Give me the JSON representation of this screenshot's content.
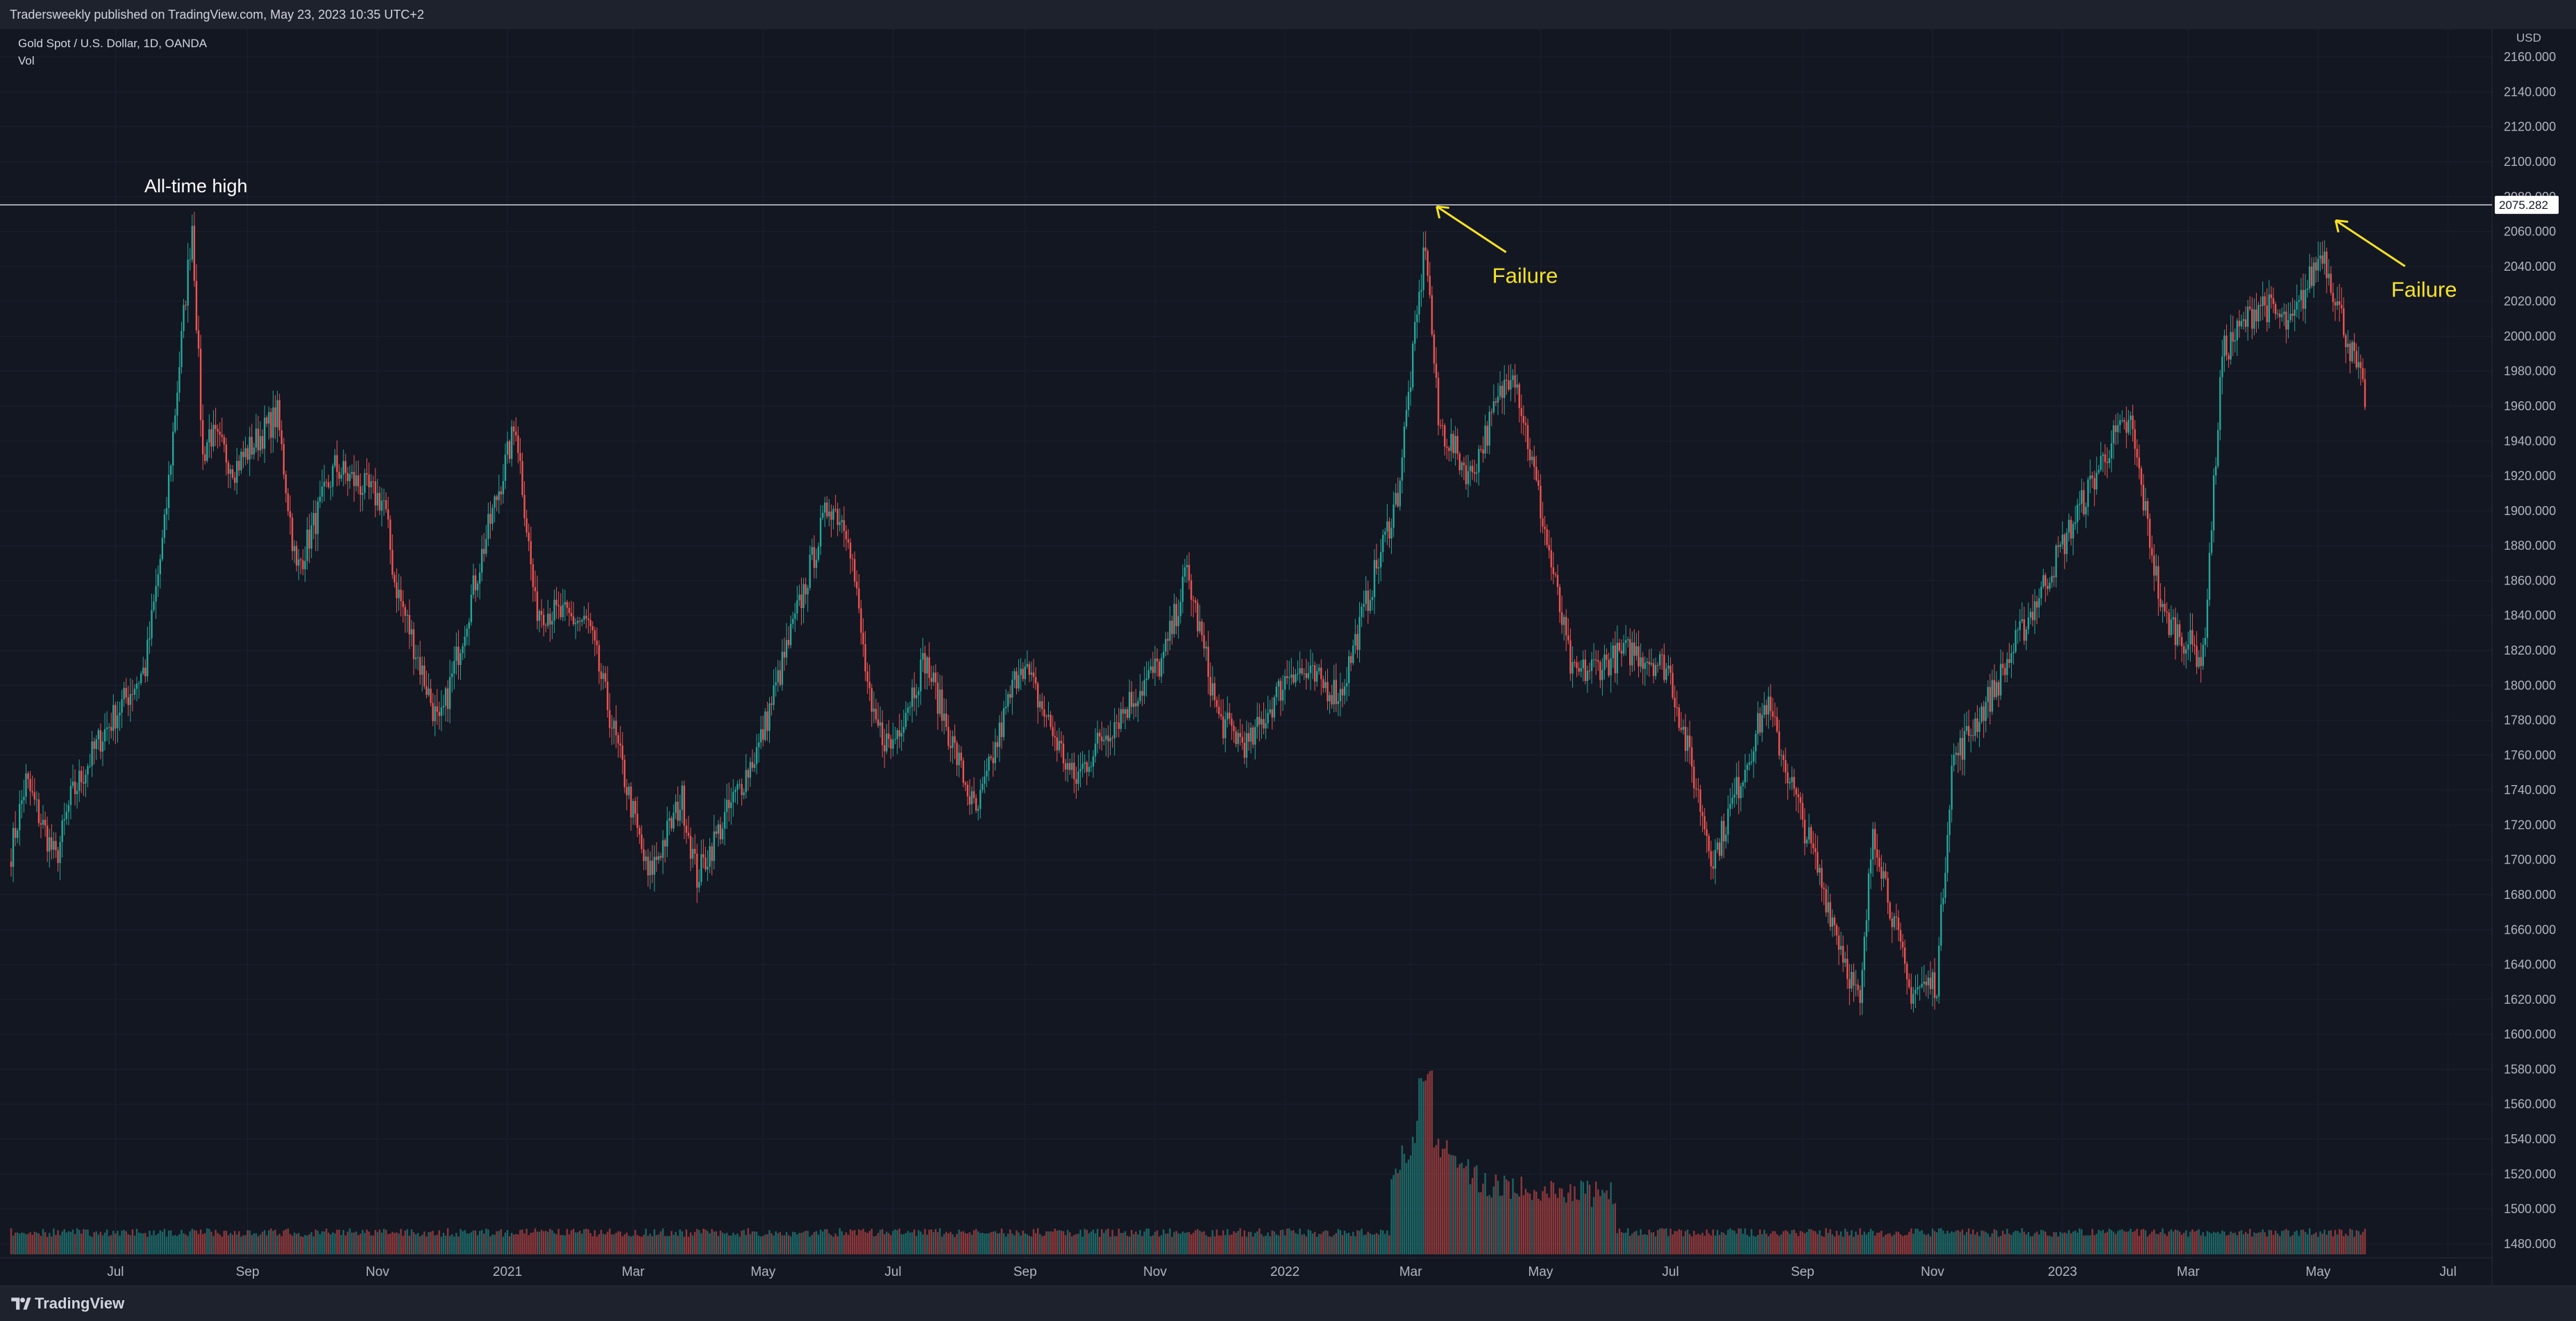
{
  "header": {
    "published": "Tradersweekly published on TradingView.com, May 23, 2023 10:35 UTC+2"
  },
  "legend": {
    "symbol": "Gold Spot / U.S. Dollar, 1D, OANDA",
    "volume": "Vol"
  },
  "footer": {
    "brand": "TradingView"
  },
  "colors": {
    "background": "#131722",
    "grid": "#1c2030",
    "up": "#26a69a",
    "down": "#ef5350",
    "annotation": "#f7e226",
    "ath_line": "#d1d4dc"
  },
  "chart_data": {
    "type": "candlestick",
    "title": "Gold Spot / U.S. Dollar, 1D, OANDA",
    "currency": "USD",
    "ylim": [
      1472,
      2172
    ],
    "y_ticks": [
      "2160.000",
      "2140.000",
      "2120.000",
      "2100.000",
      "2080.000",
      "2060.000",
      "2040.000",
      "2020.000",
      "2000.000",
      "1980.000",
      "1960.000",
      "1940.000",
      "1920.000",
      "1900.000",
      "1880.000",
      "1860.000",
      "1840.000",
      "1820.000",
      "1800.000",
      "1780.000",
      "1760.000",
      "1740.000",
      "1720.000",
      "1700.000",
      "1680.000",
      "1660.000",
      "1640.000",
      "1620.000",
      "1600.000",
      "1580.000",
      "1560.000",
      "1540.000",
      "1520.000",
      "1500.000",
      "1480.000"
    ],
    "x_ticks": [
      "Jul",
      "Sep",
      "Nov",
      "2021",
      "Mar",
      "May",
      "Jul",
      "Sep",
      "Nov",
      "2022",
      "Mar",
      "May",
      "Jul",
      "Sep",
      "Nov",
      "2023",
      "Mar",
      "May",
      "Jul"
    ],
    "x_range": [
      "2020-05-13",
      "2023-07-20"
    ],
    "x_tick_dates": [
      "2020-07-01",
      "2020-09-01",
      "2020-11-01",
      "2021-01-01",
      "2021-03-01",
      "2021-05-01",
      "2021-07-01",
      "2021-09-01",
      "2021-11-01",
      "2022-01-01",
      "2022-03-01",
      "2022-05-01",
      "2022-07-01",
      "2022-09-01",
      "2022-11-01",
      "2023-01-01",
      "2023-03-01",
      "2023-05-01",
      "2023-07-01"
    ],
    "price_path": [
      [
        "2020-05-13",
        1705
      ],
      [
        "2020-05-20",
        1745
      ],
      [
        "2020-06-03",
        1700
      ],
      [
        "2020-06-10",
        1735
      ],
      [
        "2020-06-24",
        1770
      ],
      [
        "2020-07-15",
        1810
      ],
      [
        "2020-07-24",
        1890
      ],
      [
        "2020-08-06",
        2065
      ],
      [
        "2020-08-11",
        1930
      ],
      [
        "2020-08-14",
        1945
      ],
      [
        "2020-08-26",
        1925
      ],
      [
        "2020-09-15",
        1955
      ],
      [
        "2020-09-24",
        1865
      ],
      [
        "2020-10-12",
        1925
      ],
      [
        "2020-11-04",
        1905
      ],
      [
        "2020-11-09",
        1860
      ],
      [
        "2020-11-30",
        1775
      ],
      [
        "2020-12-21",
        1880
      ],
      [
        "2021-01-05",
        1950
      ],
      [
        "2021-01-14",
        1845
      ],
      [
        "2021-02-08",
        1835
      ],
      [
        "2021-03-08",
        1690
      ],
      [
        "2021-03-24",
        1735
      ],
      [
        "2021-03-31",
        1690
      ],
      [
        "2021-04-29",
        1765
      ],
      [
        "2021-06-01",
        1905
      ],
      [
        "2021-06-10",
        1890
      ],
      [
        "2021-06-21",
        1780
      ],
      [
        "2021-06-30",
        1765
      ],
      [
        "2021-07-16",
        1815
      ],
      [
        "2021-08-09",
        1725
      ],
      [
        "2021-08-30",
        1815
      ],
      [
        "2021-09-24",
        1745
      ],
      [
        "2021-10-07",
        1770
      ],
      [
        "2021-11-05",
        1815
      ],
      [
        "2021-11-16",
        1865
      ],
      [
        "2021-12-01",
        1780
      ],
      [
        "2021-12-15",
        1765
      ],
      [
        "2022-01-04",
        1810
      ],
      [
        "2022-01-27",
        1795
      ],
      [
        "2022-02-23",
        1910
      ],
      [
        "2022-03-08",
        2055
      ],
      [
        "2022-03-14",
        1950
      ],
      [
        "2022-03-29",
        1920
      ],
      [
        "2022-04-18",
        1985
      ],
      [
        "2022-05-16",
        1805
      ],
      [
        "2022-06-13",
        1820
      ],
      [
        "2022-06-30",
        1810
      ],
      [
        "2022-07-21",
        1700
      ],
      [
        "2022-08-15",
        1790
      ],
      [
        "2022-09-28",
        1615
      ],
      [
        "2022-10-04",
        1720
      ],
      [
        "2022-10-21",
        1625
      ],
      [
        "2022-11-03",
        1630
      ],
      [
        "2022-11-10",
        1755
      ],
      [
        "2022-12-01",
        1800
      ],
      [
        "2023-01-24",
        1940
      ],
      [
        "2023-02-02",
        1950
      ],
      [
        "2023-02-17",
        1840
      ],
      [
        "2023-03-08",
        1815
      ],
      [
        "2023-03-17",
        1990
      ],
      [
        "2023-04-04",
        2020
      ],
      [
        "2023-04-18",
        2005
      ],
      [
        "2023-05-03",
        2050
      ],
      [
        "2023-05-12",
        2010
      ],
      [
        "2023-05-23",
        1965
      ]
    ],
    "candle_interval": "1 day",
    "volume_baseline": 1480,
    "volume_spike_date": "2022-03-08",
    "horizontal_line": {
      "label": "All-time high",
      "value": "2075.282"
    },
    "annotations": [
      {
        "text": "Failure",
        "date": "2022-03-08",
        "price": 2072
      },
      {
        "text": "Failure",
        "date": "2023-05-04",
        "price": 2064
      }
    ]
  }
}
